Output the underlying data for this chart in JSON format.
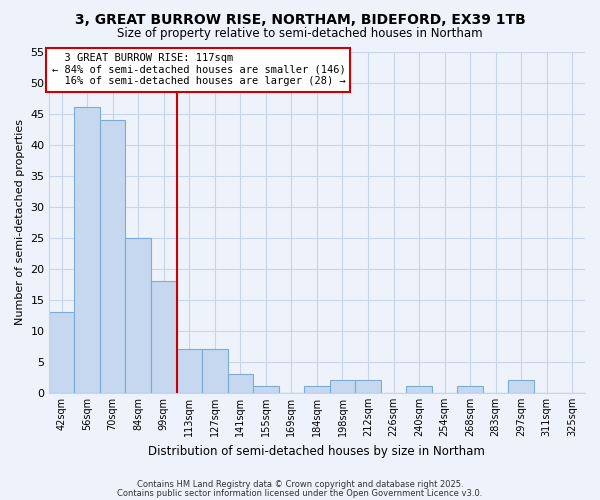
{
  "title": "3, GREAT BURROW RISE, NORTHAM, BIDEFORD, EX39 1TB",
  "subtitle": "Size of property relative to semi-detached houses in Northam",
  "xlabel": "Distribution of semi-detached houses by size in Northam",
  "ylabel": "Number of semi-detached properties",
  "bin_labels": [
    "42sqm",
    "56sqm",
    "70sqm",
    "84sqm",
    "99sqm",
    "113sqm",
    "127sqm",
    "141sqm",
    "155sqm",
    "169sqm",
    "184sqm",
    "198sqm",
    "212sqm",
    "226sqm",
    "240sqm",
    "254sqm",
    "268sqm",
    "283sqm",
    "297sqm",
    "311sqm",
    "325sqm"
  ],
  "bar_heights": [
    13,
    46,
    44,
    25,
    18,
    7,
    7,
    3,
    1,
    0,
    1,
    2,
    2,
    0,
    1,
    0,
    1,
    0,
    2,
    0,
    0
  ],
  "bar_color": "#c5d8f0",
  "bar_edge_color": "#7badd4",
  "vline_x": 4.5,
  "vline_color": "#cc0000",
  "annotation_title": "3 GREAT BURROW RISE: 117sqm",
  "annotation_line1": "← 84% of semi-detached houses are smaller (146)",
  "annotation_line2": "16% of semi-detached houses are larger (28) →",
  "ylim": [
    0,
    55
  ],
  "yticks": [
    0,
    5,
    10,
    15,
    20,
    25,
    30,
    35,
    40,
    45,
    50,
    55
  ],
  "background_color": "#eef2fa",
  "grid_color": "#c8d4e8",
  "footer1": "Contains HM Land Registry data © Crown copyright and database right 2025.",
  "footer2": "Contains public sector information licensed under the Open Government Licence v3.0."
}
